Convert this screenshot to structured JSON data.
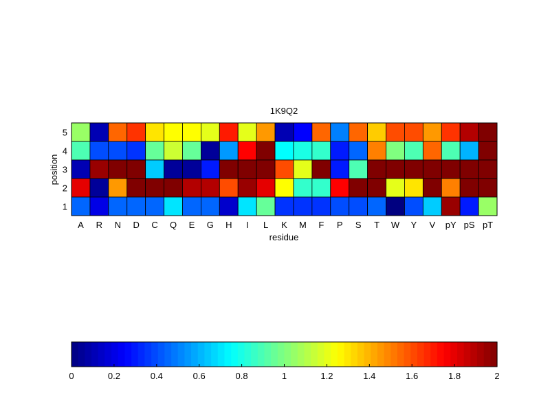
{
  "chart_data": {
    "type": "heatmap",
    "title": "1K9Q2",
    "xlabel": "residue",
    "ylabel": "position",
    "x_categories": [
      "A",
      "R",
      "N",
      "D",
      "C",
      "Q",
      "E",
      "G",
      "H",
      "I",
      "L",
      "K",
      "M",
      "F",
      "P",
      "S",
      "T",
      "W",
      "Y",
      "V",
      "pY",
      "pS",
      "pT"
    ],
    "y_categories": [
      "1",
      "2",
      "3",
      "4",
      "5"
    ],
    "rows": [
      {
        "position": "5",
        "values": [
          1.05,
          0.1,
          1.55,
          1.65,
          1.3,
          1.25,
          1.25,
          1.2,
          1.7,
          1.2,
          1.45,
          0.1,
          0.25,
          1.55,
          0.5,
          1.55,
          1.35,
          1.6,
          1.6,
          1.45,
          1.65,
          1.9,
          2.0
        ]
      },
      {
        "position": "4",
        "values": [
          0.9,
          0.4,
          0.4,
          0.35,
          0.95,
          1.15,
          0.95,
          0.05,
          0.55,
          1.75,
          2.0,
          0.75,
          0.8,
          0.85,
          0.3,
          0.45,
          1.5,
          1.0,
          0.9,
          1.55,
          0.9,
          0.6,
          2.0
        ]
      },
      {
        "position": "3",
        "values": [
          0.1,
          1.95,
          2.0,
          2.0,
          0.65,
          0.05,
          0.05,
          0.3,
          2.0,
          2.0,
          2.0,
          1.6,
          1.2,
          2.0,
          0.3,
          0.9,
          2.0,
          2.0,
          2.0,
          2.0,
          2.0,
          2.0,
          2.0
        ]
      },
      {
        "position": "2",
        "values": [
          1.8,
          0.05,
          1.45,
          2.0,
          2.0,
          2.0,
          1.9,
          1.9,
          1.6,
          1.95,
          1.8,
          1.25,
          0.85,
          0.85,
          1.75,
          2.0,
          2.0,
          1.2,
          1.3,
          2.0,
          1.5,
          2.0,
          2.0
        ]
      },
      {
        "position": "1",
        "values": [
          0.45,
          0.2,
          0.45,
          0.45,
          0.45,
          0.7,
          0.45,
          0.45,
          0.15,
          0.7,
          0.95,
          0.35,
          0.35,
          0.35,
          0.4,
          0.4,
          0.45,
          0.0,
          0.4,
          0.65,
          1.95,
          0.3,
          1.05
        ]
      }
    ],
    "colormap": "jet",
    "clim": [
      0,
      2
    ],
    "colorbar": {
      "position": "bottom",
      "ticks": [
        "0",
        "0.2",
        "0.4",
        "0.6",
        "0.8",
        "1",
        "1.2",
        "1.4",
        "1.6",
        "1.8",
        "2"
      ],
      "levels": 64
    },
    "grid": true
  }
}
